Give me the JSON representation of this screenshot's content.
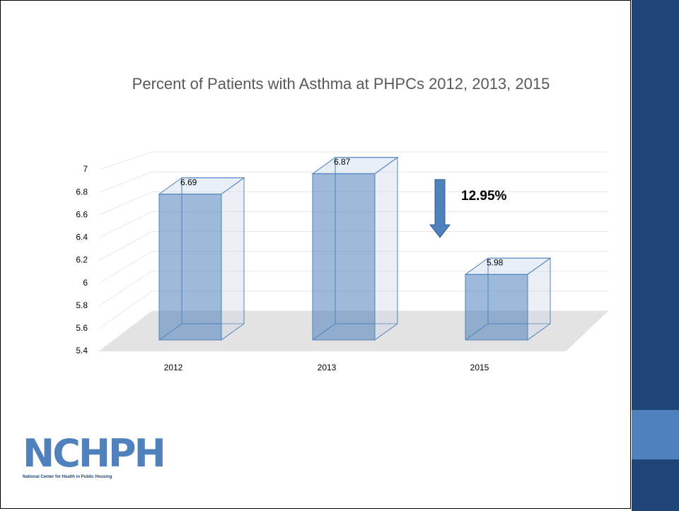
{
  "chart_data": {
    "type": "bar3d",
    "title": "Percent of Patients with Asthma at PHPCs  2012, 2013, 2015",
    "categories": [
      "2012",
      "2013",
      "2015"
    ],
    "values": [
      6.69,
      6.87,
      5.98
    ],
    "color": "#4f81bd",
    "ylim": [
      5.4,
      7
    ],
    "yticks": [
      5.4,
      5.6,
      5.8,
      6,
      6.2,
      6.4,
      6.6,
      6.8,
      7
    ],
    "grid": true,
    "annotation": "12.95%"
  },
  "logo": {
    "text": "NCHPH",
    "subtitle": "National Center for Health in Public Housing"
  }
}
